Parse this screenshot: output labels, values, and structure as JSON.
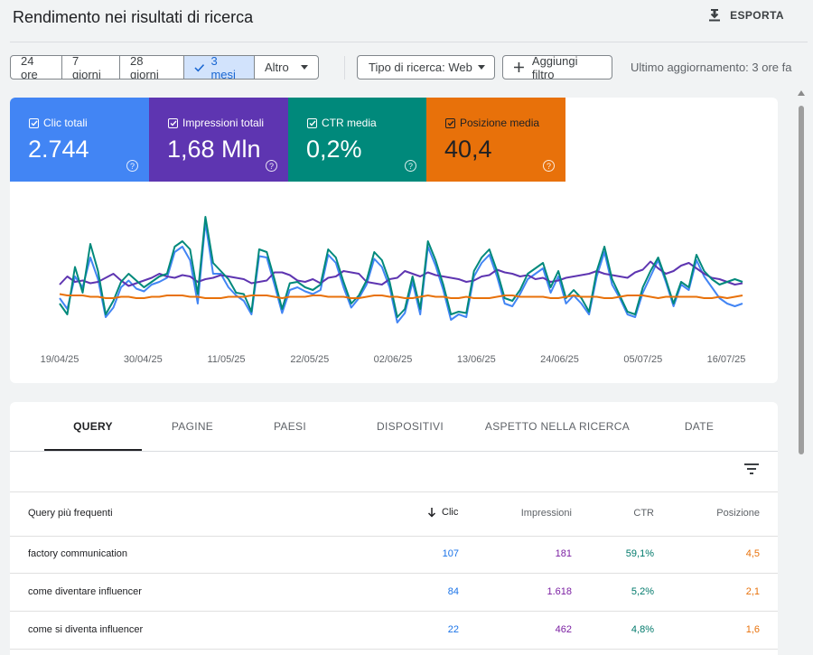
{
  "header": {
    "title": "Rendimento nei risultati di ricerca",
    "export_label": "ESPORTA"
  },
  "date_ranges": [
    {
      "label": "24 ore",
      "active": false
    },
    {
      "label": "7 giorni",
      "active": false
    },
    {
      "label": "28 giorni",
      "active": false
    },
    {
      "label": "3 mesi",
      "active": true
    },
    {
      "label": "Altro",
      "active": false
    }
  ],
  "filters": {
    "search_type": "Tipo di ricerca: Web",
    "add_filter": "Aggiungi filtro"
  },
  "last_updated": "Ultimo aggiornamento: 3 ore fa",
  "metrics": [
    {
      "label": "Clic totali",
      "value": "2.744",
      "color": "#4285f4"
    },
    {
      "label": "Impressioni totali",
      "value": "1,68 Mln",
      "color": "#5e35b1"
    },
    {
      "label": "CTR media",
      "value": "0,2%",
      "color": "#00897b"
    },
    {
      "label": "Posizione media",
      "value": "40,4",
      "color": "#e8710a"
    }
  ],
  "chart_data": {
    "type": "line",
    "x_ticks": [
      "19/04/25",
      "30/04/25",
      "11/05/25",
      "22/05/25",
      "02/06/25",
      "13/06/25",
      "24/06/25",
      "05/07/25",
      "16/07/25"
    ],
    "series": [
      {
        "name": "Clic totali",
        "color": "#4285f4",
        "values": [
          32,
          24,
          48,
          40,
          62,
          46,
          18,
          25,
          40,
          45,
          39,
          37,
          42,
          44,
          47,
          66,
          70,
          60,
          28,
          88,
          50,
          50,
          40,
          34,
          30,
          20,
          63,
          62,
          42,
          21,
          38,
          40,
          37,
          35,
          38,
          64,
          58,
          40,
          25,
          32,
          42,
          61,
          55,
          40,
          14,
          21,
          44,
          20,
          70,
          56,
          38,
          16,
          20,
          18,
          48,
          58,
          64,
          48,
          28,
          26,
          35,
          46,
          50,
          54,
          36,
          48,
          28,
          34,
          28,
          20,
          48,
          66,
          42,
          32,
          20,
          18,
          36,
          48,
          60,
          44,
          26,
          42,
          38,
          60,
          48,
          40,
          32,
          28,
          26,
          28
        ]
      },
      {
        "name": "Impressioni totali",
        "color": "#5e35b1",
        "values": [
          42,
          48,
          44,
          45,
          43,
          44,
          47,
          50,
          45,
          41,
          43,
          45,
          47,
          50,
          48,
          47,
          49,
          48,
          44,
          46,
          47,
          49,
          48,
          47,
          46,
          43,
          44,
          45,
          51,
          51,
          49,
          45,
          44,
          46,
          43,
          47,
          48,
          52,
          51,
          50,
          44,
          43,
          42,
          46,
          47,
          52,
          50,
          48,
          51,
          49,
          48,
          47,
          46,
          44,
          45,
          48,
          49,
          53,
          51,
          50,
          48,
          49,
          46,
          47,
          44,
          45,
          47,
          48,
          49,
          50,
          52,
          50,
          49,
          48,
          47,
          51,
          53,
          59,
          54,
          50,
          52,
          56,
          58,
          54,
          50,
          47,
          46,
          44,
          42,
          43
        ]
      },
      {
        "name": "CTR media",
        "color": "#00897b",
        "values": [
          28,
          20,
          55,
          36,
          72,
          52,
          20,
          30,
          44,
          50,
          45,
          40,
          44,
          48,
          50,
          70,
          74,
          68,
          35,
          92,
          58,
          52,
          46,
          36,
          35,
          22,
          68,
          66,
          46,
          24,
          43,
          44,
          40,
          38,
          42,
          68,
          62,
          44,
          28,
          34,
          45,
          66,
          60,
          44,
          18,
          24,
          48,
          24,
          74,
          60,
          42,
          20,
          22,
          21,
          52,
          62,
          68,
          52,
          32,
          30,
          38,
          50,
          54,
          58,
          40,
          52,
          32,
          38,
          32,
          22,
          52,
          70,
          46,
          34,
          22,
          20,
          40,
          52,
          62,
          46,
          28,
          44,
          40,
          64,
          52,
          46,
          42,
          44,
          46,
          44
        ]
      },
      {
        "name": "Posizione media",
        "color": "#e8710a",
        "values": [
          35,
          34,
          34,
          34,
          33,
          33,
          32,
          32,
          33,
          33,
          32,
          32,
          33,
          33,
          34,
          34,
          34,
          33,
          33,
          32,
          32,
          32,
          33,
          33,
          33,
          34,
          34,
          34,
          33,
          32,
          33,
          33,
          33,
          34,
          34,
          33,
          33,
          33,
          32,
          32,
          33,
          34,
          34,
          33,
          33,
          32,
          32,
          33,
          34,
          33,
          33,
          32,
          32,
          33,
          32,
          32,
          32,
          33,
          34,
          34,
          33,
          33,
          33,
          33,
          32,
          32,
          33,
          34,
          33,
          33,
          33,
          32,
          32,
          33,
          34,
          34,
          34,
          33,
          32,
          33,
          33,
          33,
          33,
          33,
          32,
          32,
          33,
          32,
          33,
          34
        ]
      }
    ]
  },
  "tabs": [
    {
      "label": "QUERY",
      "active": true
    },
    {
      "label": "PAGINE",
      "active": false
    },
    {
      "label": "PAESI",
      "active": false
    },
    {
      "label": "DISPOSITIVI",
      "active": false
    },
    {
      "label": "ASPETTO NELLA RICERCA",
      "active": false
    },
    {
      "label": "DATE",
      "active": false
    }
  ],
  "table": {
    "columns": [
      "Query più frequenti",
      "Clic",
      "Impressioni",
      "CTR",
      "Posizione"
    ],
    "rows": [
      {
        "query": "factory communication",
        "clicks": "107",
        "impressions": "181",
        "ctr": "59,1%",
        "position": "4,5"
      },
      {
        "query": "come diventare influencer",
        "clicks": "84",
        "impressions": "1.618",
        "ctr": "5,2%",
        "position": "2,1"
      },
      {
        "query": "come si diventa influencer",
        "clicks": "22",
        "impressions": "462",
        "ctr": "4,8%",
        "position": "1,6"
      }
    ]
  }
}
